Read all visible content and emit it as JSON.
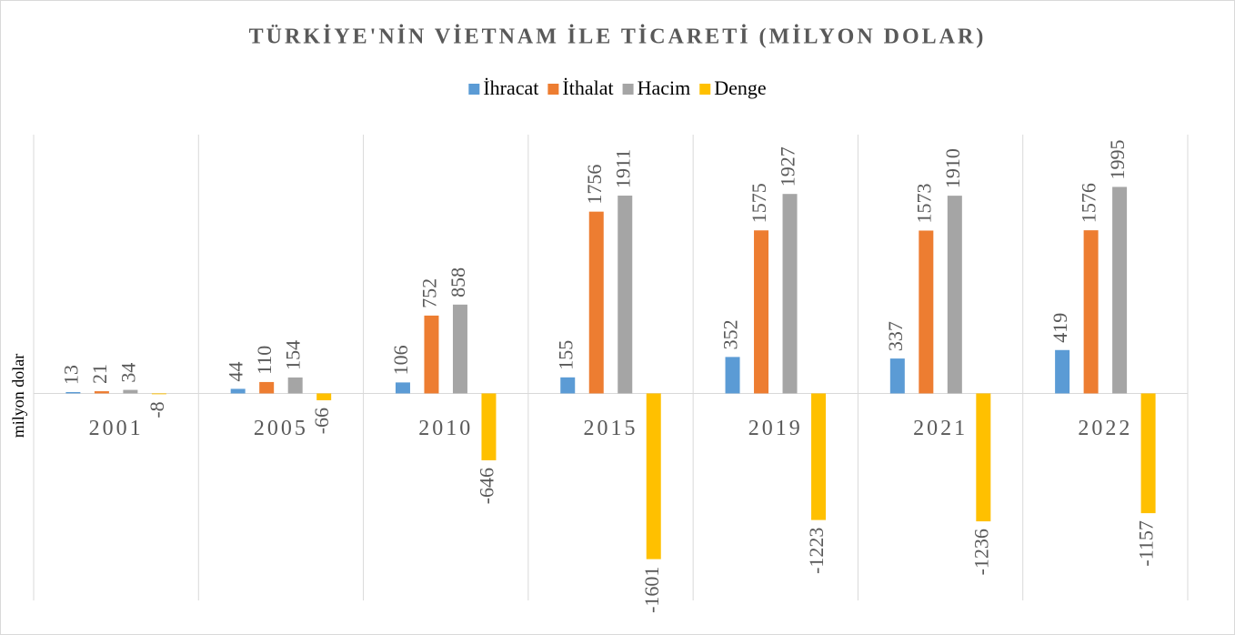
{
  "chart_data": {
    "type": "bar",
    "title": "TÜRKİYE'NİN VİETNAM İLE TİCARETİ (MİLYON DOLAR)",
    "y_label": "milyon dolar",
    "categories": [
      "2001",
      "2005",
      "2010",
      "2015",
      "2019",
      "2021",
      "2022"
    ],
    "series": [
      {
        "name": "İhracat",
        "color": "#5b9bd5",
        "values": [
          13,
          44,
          106,
          155,
          352,
          337,
          419
        ]
      },
      {
        "name": "İthalat",
        "color": "#ed7d31",
        "values": [
          21,
          110,
          752,
          1756,
          1575,
          1573,
          1576
        ]
      },
      {
        "name": "Hacim",
        "color": "#a5a5a5",
        "values": [
          34,
          154,
          858,
          1911,
          1927,
          1910,
          1995
        ]
      },
      {
        "name": "Denge",
        "color": "#ffc000",
        "values": [
          -8,
          -66,
          -646,
          -1601,
          -1223,
          -1236,
          -1157
        ]
      }
    ],
    "ylim": [
      -2000,
      2500
    ],
    "legend": "top"
  }
}
